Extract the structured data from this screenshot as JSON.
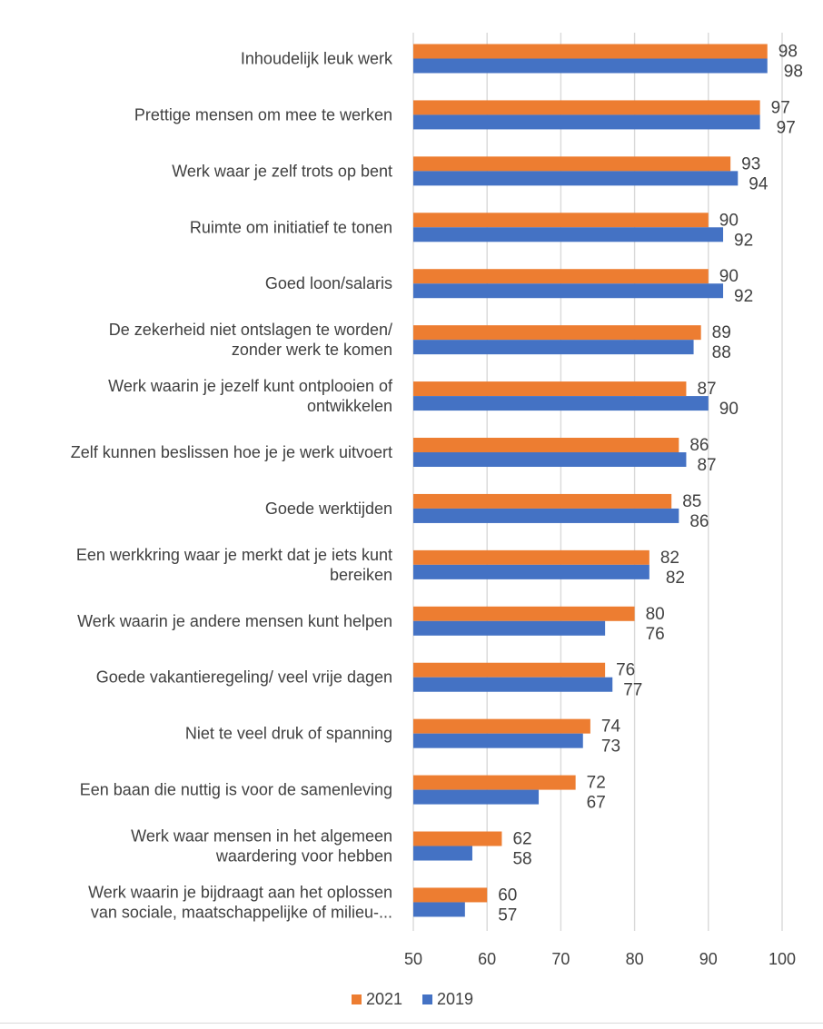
{
  "chart_data": {
    "type": "bar",
    "orientation": "horizontal",
    "categories": [
      [
        "Inhoudelijk leuk werk"
      ],
      [
        "Prettige mensen om mee te werken"
      ],
      [
        "Werk waar je zelf trots op bent"
      ],
      [
        "Ruimte om initiatief te tonen"
      ],
      [
        "Goed loon/salaris"
      ],
      [
        "De zekerheid niet ontslagen te worden/",
        "zonder werk te komen"
      ],
      [
        "Werk waarin je jezelf kunt ontplooien of",
        "ontwikkelen"
      ],
      [
        "Zelf kunnen beslissen hoe je je werk uitvoert"
      ],
      [
        "Goede werktijden"
      ],
      [
        "Een werkkring waar je merkt dat je iets kunt",
        "bereiken"
      ],
      [
        "Werk waarin je andere mensen kunt helpen"
      ],
      [
        "Goede vakantieregeling/ veel vrije dagen"
      ],
      [
        "Niet te veel druk of spanning"
      ],
      [
        "Een baan die nuttig is voor de samenleving"
      ],
      [
        "Werk waar mensen in het algemeen",
        "waardering voor hebben"
      ],
      [
        "Werk waarin je bijdraagt aan het oplossen",
        "van sociale, maatschappelijke of milieu-..."
      ]
    ],
    "series": [
      {
        "name": "2021",
        "color": "#ED7D31",
        "values": [
          98,
          97,
          93,
          90,
          90,
          89,
          87,
          86,
          85,
          82,
          80,
          76,
          74,
          72,
          62,
          60
        ]
      },
      {
        "name": "2019",
        "color": "#4472C4",
        "values": [
          98,
          97,
          94,
          92,
          92,
          88,
          90,
          87,
          86,
          82,
          76,
          77,
          73,
          67,
          58,
          57
        ]
      }
    ],
    "xlim": [
      50,
      100
    ],
    "xticks": [
      50,
      60,
      70,
      80,
      90,
      100
    ],
    "grid": true,
    "legend": "bottom",
    "data_labels": true,
    "title": "",
    "xlabel": "",
    "ylabel": ""
  }
}
